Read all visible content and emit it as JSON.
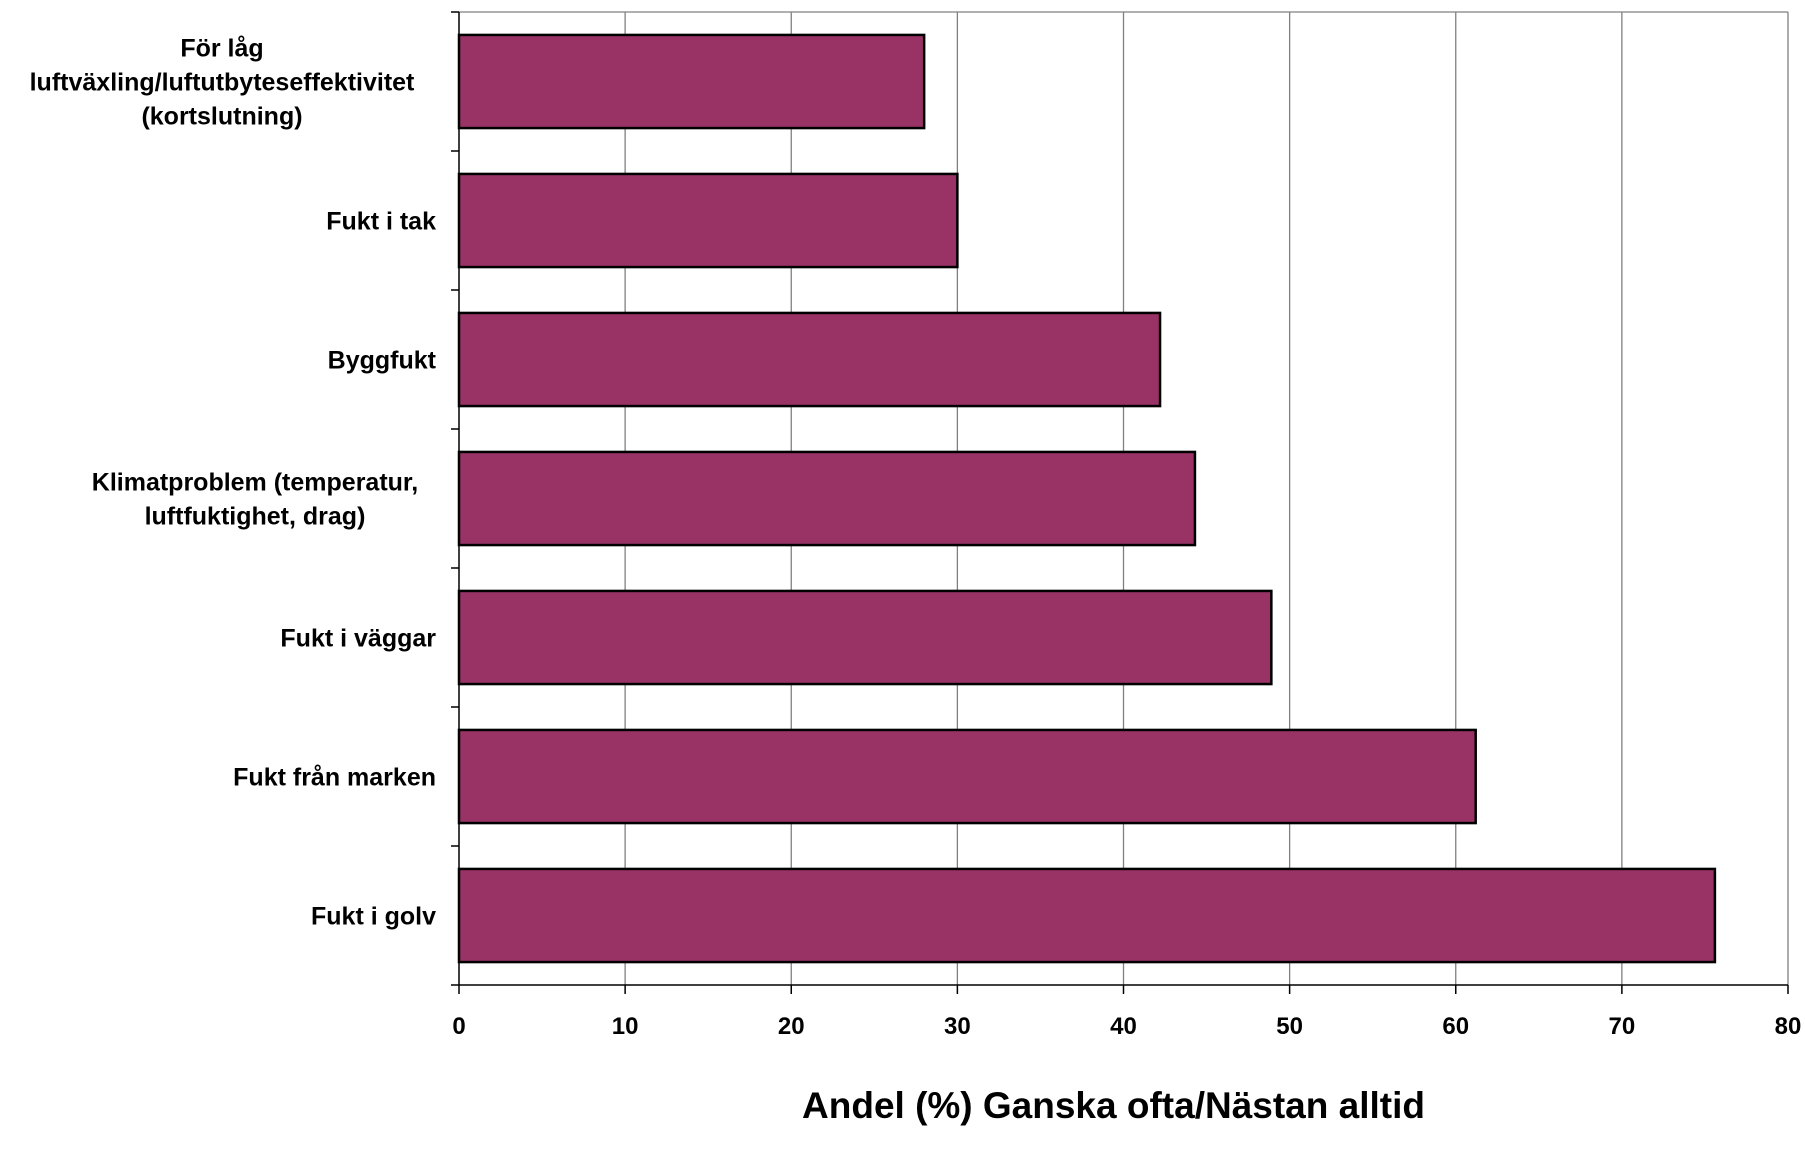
{
  "chart_data": {
    "type": "bar",
    "orientation": "horizontal",
    "categories": [
      [
        "För låg",
        "luftväxling/luftutbyteseffektivitet",
        "(kortslutning)"
      ],
      [
        "Fukt i tak"
      ],
      [
        "Byggfukt"
      ],
      [
        "Klimatproblem (temperatur,",
        "luftfuktighet, drag)"
      ],
      [
        "Fukt i väggar"
      ],
      [
        "Fukt från marken"
      ],
      [
        "Fukt i golv"
      ]
    ],
    "values": [
      28,
      30,
      42.2,
      44.3,
      48.9,
      61.2,
      75.6
    ],
    "xlabel": "Andel (%) Ganska ofta/Nästan alltid",
    "ylabel": "",
    "xlim": [
      0,
      80
    ],
    "xticks": [
      0,
      10,
      20,
      30,
      40,
      50,
      60,
      70,
      80
    ],
    "grid": "vertical",
    "legend": "none",
    "bar_color": "#993366",
    "grid_color": "#808080"
  }
}
